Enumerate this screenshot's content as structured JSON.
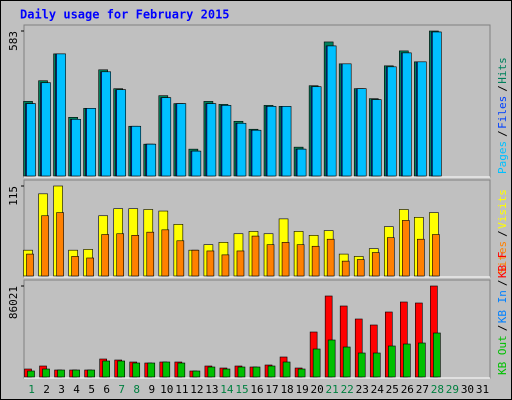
{
  "chart_data": [
    {
      "type": "bar",
      "title": "Daily usage for February 2015",
      "categories": [
        "1",
        "2",
        "3",
        "4",
        "5",
        "6",
        "7",
        "8",
        "9",
        "10",
        "11",
        "12",
        "13",
        "14",
        "15",
        "16",
        "17",
        "18",
        "19",
        "20",
        "21",
        "22",
        "23",
        "24",
        "25",
        "26",
        "27",
        "28",
        "29",
        "30",
        "31"
      ],
      "weekend_label_color": "#008040",
      "weekend_categories": [
        "1",
        "7",
        "8",
        "14",
        "15",
        "21",
        "22",
        "28",
        "29"
      ],
      "ylim": [
        0,
        583
      ],
      "yticks": [
        583
      ],
      "series": [
        {
          "name": "Hits",
          "color": "#00805c",
          "values": [
            300,
            383,
            491,
            236,
            272,
            427,
            351,
            200,
            128,
            323,
            291,
            108,
            300,
            288,
            220,
            188,
            284,
            280,
            116,
            363,
            539,
            451,
            351,
            311,
            443,
            503,
            459,
            583,
            null,
            null,
            null
          ]
        },
        {
          "name": "Files",
          "color": "#0040ff",
          "values": [
            291,
            375,
            491,
            228,
            272,
            419,
            347,
            200,
            128,
            315,
            291,
            100,
            291,
            284,
            212,
            184,
            280,
            280,
            108,
            359,
            523,
            451,
            351,
            307,
            439,
            495,
            459,
            579,
            null,
            null,
            null
          ]
        },
        {
          "name": "Pages",
          "color": "#00c0ff",
          "values": [
            291,
            375,
            491,
            228,
            272,
            419,
            347,
            200,
            128,
            315,
            291,
            100,
            291,
            284,
            212,
            184,
            280,
            280,
            108,
            359,
            523,
            451,
            351,
            307,
            439,
            495,
            459,
            579,
            null,
            null,
            null
          ]
        }
      ]
    },
    {
      "type": "bar",
      "ylim": [
        0,
        115
      ],
      "yticks": [
        115
      ],
      "series": [
        {
          "name": "Visits",
          "color": "#ffff00",
          "values": [
            33,
            105,
            115,
            33,
            34,
            77,
            86,
            86,
            85,
            83,
            66,
            33,
            40,
            43,
            54,
            57,
            54,
            73,
            57,
            52,
            58,
            28,
            25,
            35,
            63,
            85,
            75,
            81,
            null,
            null,
            null
          ]
        },
        {
          "name": "Sites",
          "color": "#ff8000",
          "values": [
            28,
            77,
            81,
            25,
            23,
            53,
            54,
            52,
            56,
            59,
            45,
            33,
            32,
            27,
            32,
            51,
            40,
            43,
            40,
            38,
            47,
            19,
            21,
            30,
            49,
            71,
            47,
            53,
            null,
            null,
            null
          ]
        }
      ]
    },
    {
      "type": "bar",
      "ylim": [
        0,
        86021
      ],
      "yticks": [
        86021
      ],
      "series": [
        {
          "name": "KB F",
          "color": "#ff0000",
          "values": [
            7562,
            10398,
            6617,
            6617,
            6617,
            17015,
            16070,
            14179,
            13234,
            14179,
            14179,
            5672,
            10398,
            8508,
            10398,
            9453,
            11343,
            18906,
            8508,
            42538,
            76570,
            67117,
            54828,
            49156,
            61445,
            70898,
            69953,
            86021,
            null,
            null,
            null
          ]
        },
        {
          "name": "KB In",
          "color": "#0080ff",
          "values": [
            0,
            0,
            0,
            0,
            0,
            0,
            0,
            0,
            0,
            0,
            0,
            0,
            0,
            0,
            0,
            0,
            0,
            0,
            0,
            0,
            0,
            0,
            0,
            0,
            0,
            0,
            0,
            0,
            null,
            null,
            null
          ]
        },
        {
          "name": "KB Out",
          "color": "#00c000",
          "values": [
            5672,
            7562,
            6617,
            6617,
            6617,
            15125,
            15125,
            13234,
            13234,
            14179,
            13234,
            5672,
            9453,
            7562,
            9453,
            9453,
            10398,
            14179,
            7562,
            26468,
            34976,
            28359,
            22687,
            22687,
            29304,
            31195,
            32140,
            41593,
            null,
            null,
            null
          ]
        }
      ]
    }
  ]
}
